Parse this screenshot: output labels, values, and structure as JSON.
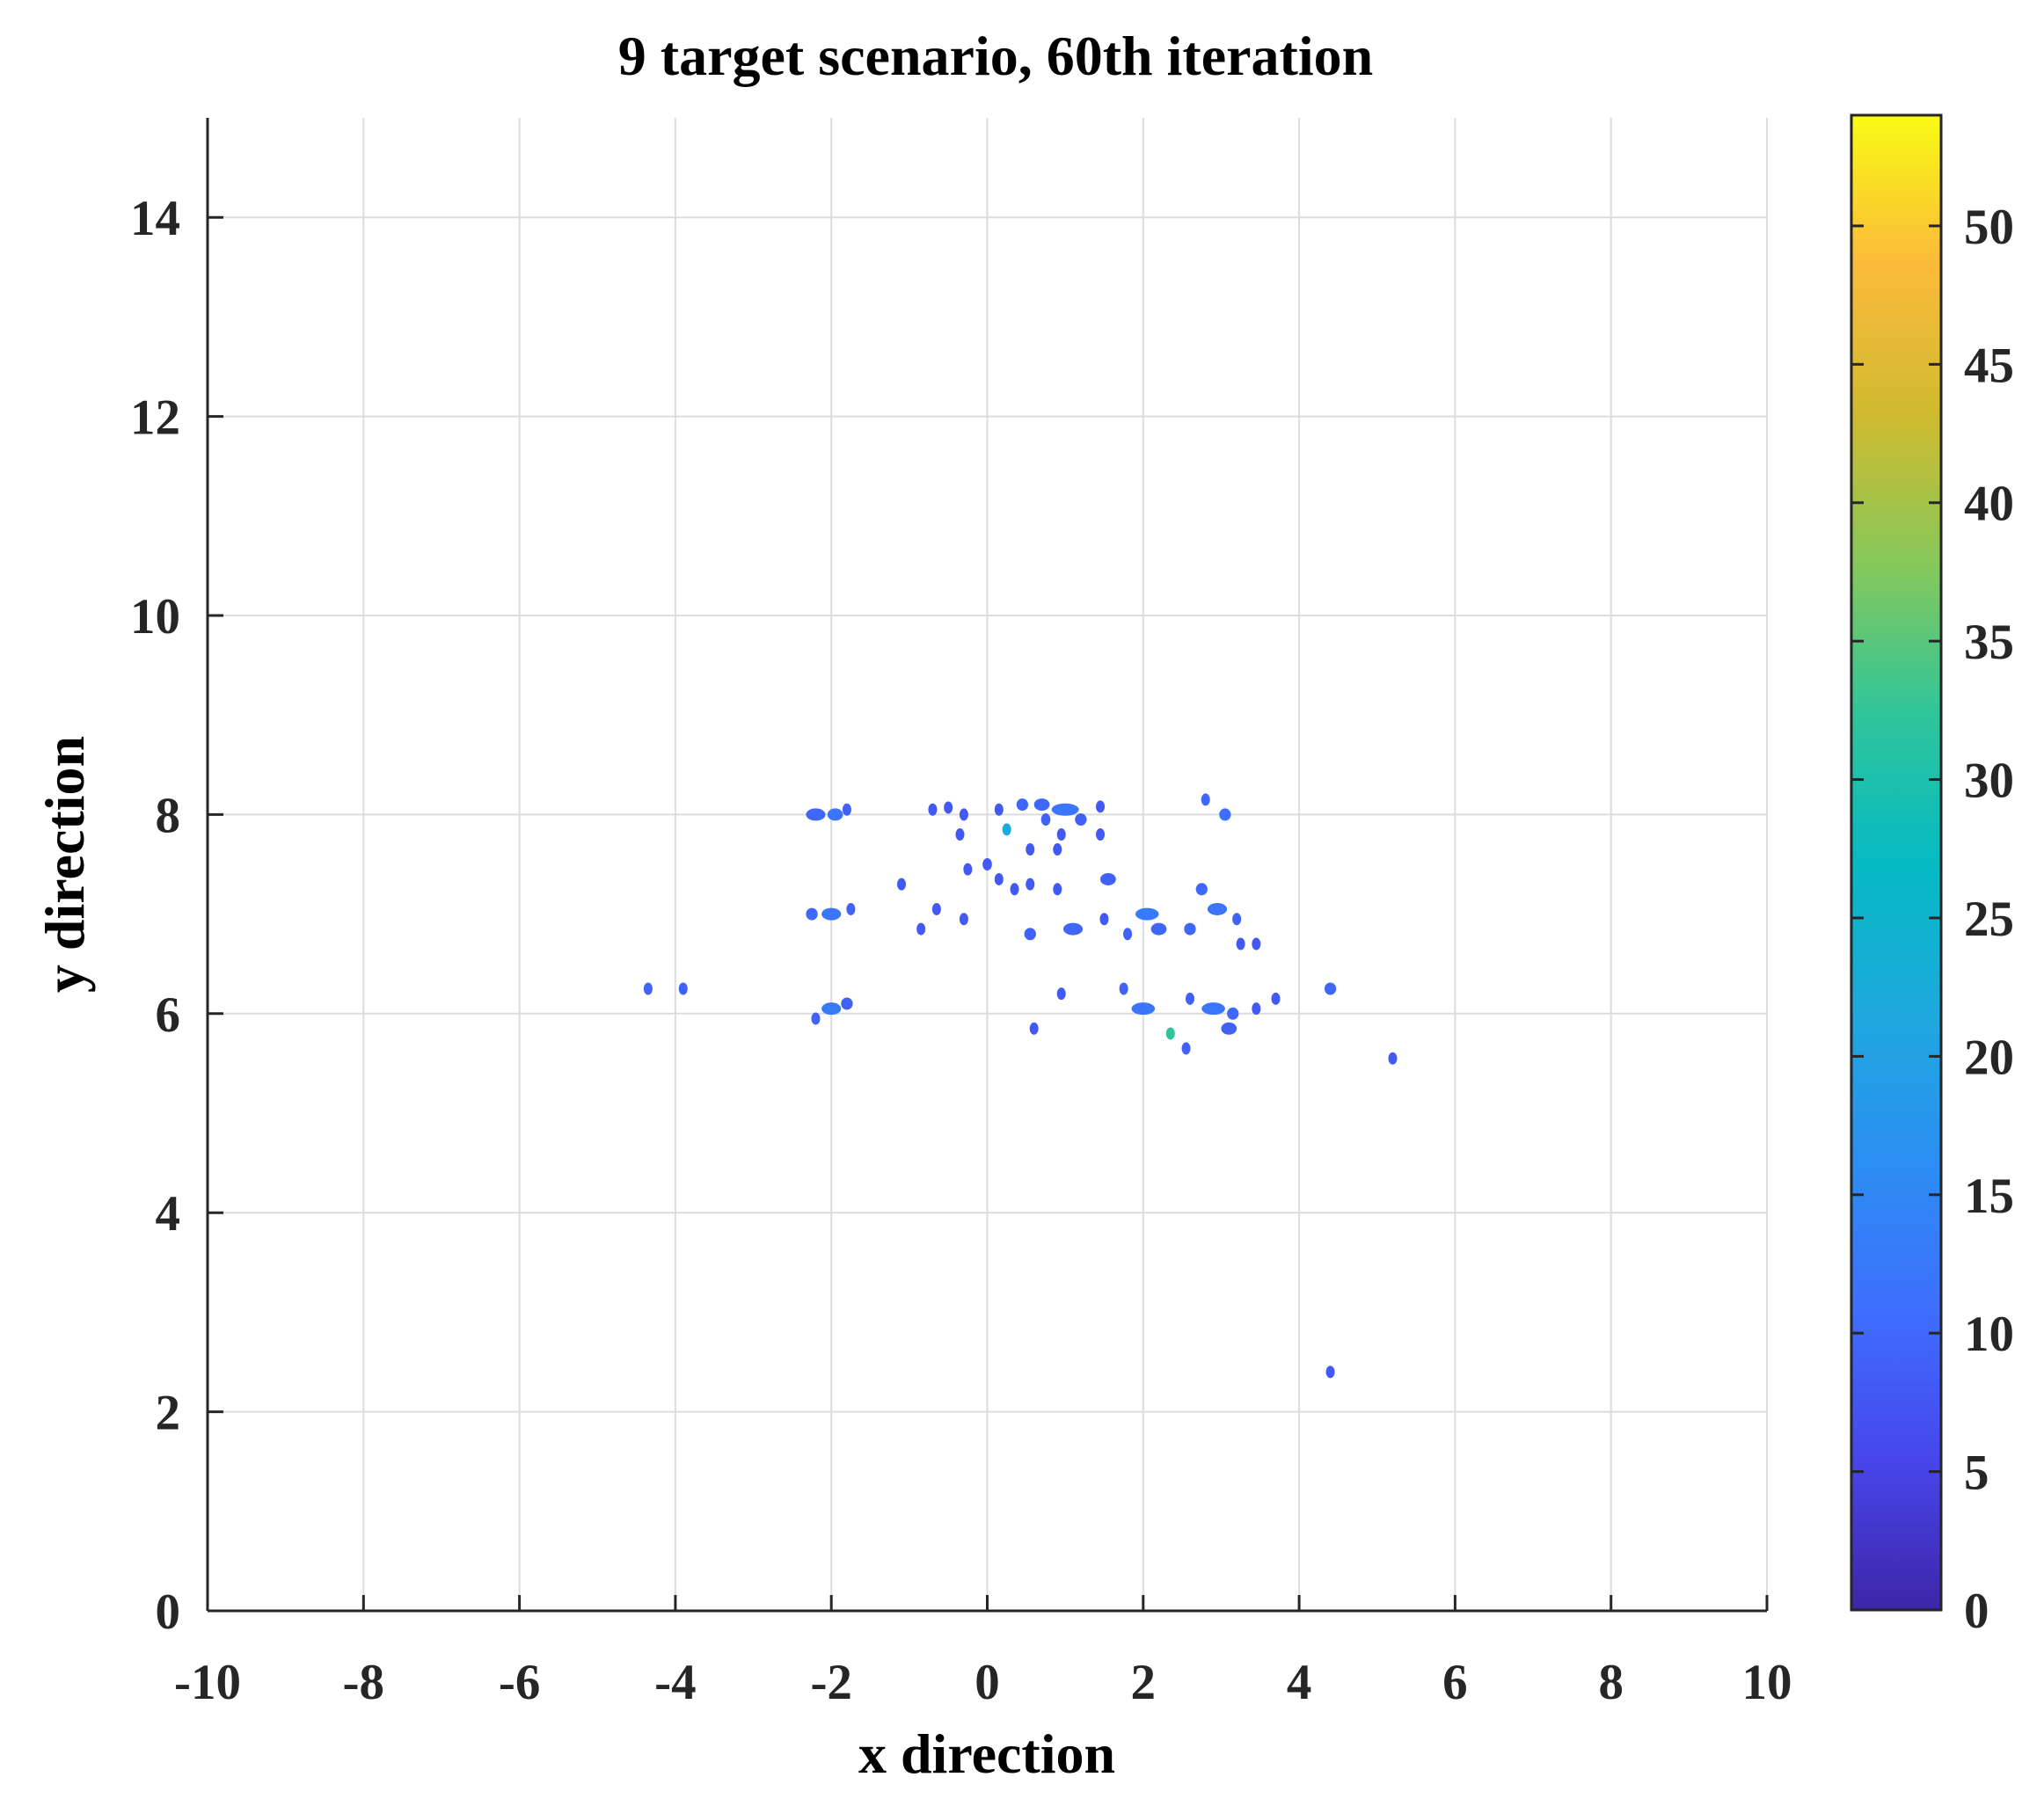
{
  "chart_data": {
    "type": "heatmap",
    "title": "9 target scenario, 60th iteration",
    "xlabel": "x direction",
    "ylabel": "y direction",
    "xlim": [
      -10,
      10
    ],
    "ylim": [
      0,
      15
    ],
    "xticks": [
      -10,
      -8,
      -6,
      -4,
      -2,
      0,
      2,
      4,
      6,
      8,
      10
    ],
    "yticks": [
      0,
      2,
      4,
      6,
      8,
      10,
      12,
      14
    ],
    "grid": true,
    "colorbar": {
      "colormap": "parula",
      "range": [
        0,
        54
      ],
      "ticks": [
        0,
        5,
        10,
        15,
        20,
        25,
        30,
        35,
        40,
        45,
        50
      ]
    },
    "points": [
      {
        "x": -2.2,
        "y": 8.0,
        "v": 10,
        "w": 0.25
      },
      {
        "x": -1.95,
        "y": 8.0,
        "v": 12,
        "w": 0.2
      },
      {
        "x": -1.8,
        "y": 8.05,
        "v": 9,
        "w": 0.1
      },
      {
        "x": -2.25,
        "y": 7.0,
        "v": 10,
        "w": 0.15
      },
      {
        "x": -2.0,
        "y": 7.0,
        "v": 12,
        "w": 0.25
      },
      {
        "x": -1.75,
        "y": 7.05,
        "v": 9,
        "w": 0.1
      },
      {
        "x": -2.2,
        "y": 5.95,
        "v": 9,
        "w": 0.1
      },
      {
        "x": -2.0,
        "y": 6.05,
        "v": 13,
        "w": 0.25
      },
      {
        "x": -1.8,
        "y": 6.1,
        "v": 9,
        "w": 0.15
      },
      {
        "x": -4.35,
        "y": 6.25,
        "v": 9,
        "w": 0.06
      },
      {
        "x": -3.9,
        "y": 6.25,
        "v": 9,
        "w": 0.06
      },
      {
        "x": -0.7,
        "y": 8.05,
        "v": 8,
        "w": 0.06
      },
      {
        "x": -0.5,
        "y": 8.07,
        "v": 8,
        "w": 0.1
      },
      {
        "x": -0.3,
        "y": 8.0,
        "v": 8,
        "w": 0.06
      },
      {
        "x": 0.15,
        "y": 8.05,
        "v": 8,
        "w": 0.06
      },
      {
        "x": 0.25,
        "y": 7.85,
        "v": 22,
        "w": 0.05
      },
      {
        "x": 0.45,
        "y": 8.1,
        "v": 10,
        "w": 0.15
      },
      {
        "x": 0.7,
        "y": 8.1,
        "v": 10,
        "w": 0.2
      },
      {
        "x": 1.0,
        "y": 8.05,
        "v": 12,
        "w": 0.35
      },
      {
        "x": 1.2,
        "y": 7.95,
        "v": 9,
        "w": 0.15
      },
      {
        "x": 0.75,
        "y": 7.95,
        "v": 9,
        "w": 0.12
      },
      {
        "x": 0.95,
        "y": 7.8,
        "v": 8,
        "w": 0.05
      },
      {
        "x": 1.45,
        "y": 8.08,
        "v": 8,
        "w": 0.06
      },
      {
        "x": 1.45,
        "y": 7.8,
        "v": 8,
        "w": 0.06
      },
      {
        "x": -0.35,
        "y": 7.8,
        "v": 8,
        "w": 0.05
      },
      {
        "x": -0.25,
        "y": 7.45,
        "v": 8,
        "w": 0.05
      },
      {
        "x": 0.0,
        "y": 7.5,
        "v": 8,
        "w": 0.12
      },
      {
        "x": 0.15,
        "y": 7.35,
        "v": 8,
        "w": 0.06
      },
      {
        "x": 0.35,
        "y": 7.25,
        "v": 8,
        "w": 0.06
      },
      {
        "x": 0.55,
        "y": 7.3,
        "v": 8,
        "w": 0.05
      },
      {
        "x": 0.55,
        "y": 7.65,
        "v": 8,
        "w": 0.05
      },
      {
        "x": 0.9,
        "y": 7.65,
        "v": 8,
        "w": 0.05
      },
      {
        "x": 0.9,
        "y": 7.25,
        "v": 8,
        "w": 0.05
      },
      {
        "x": -1.1,
        "y": 7.3,
        "v": 8,
        "w": 0.05
      },
      {
        "x": -0.65,
        "y": 7.05,
        "v": 8,
        "w": 0.1
      },
      {
        "x": -0.3,
        "y": 6.95,
        "v": 8,
        "w": 0.05
      },
      {
        "x": -0.85,
        "y": 6.85,
        "v": 8,
        "w": 0.1
      },
      {
        "x": 0.55,
        "y": 6.8,
        "v": 9,
        "w": 0.15
      },
      {
        "x": 1.1,
        "y": 6.85,
        "v": 10,
        "w": 0.25
      },
      {
        "x": 1.55,
        "y": 7.35,
        "v": 9,
        "w": 0.2
      },
      {
        "x": 1.5,
        "y": 6.95,
        "v": 8,
        "w": 0.05
      },
      {
        "x": 2.05,
        "y": 7.0,
        "v": 13,
        "w": 0.3
      },
      {
        "x": 2.2,
        "y": 6.85,
        "v": 10,
        "w": 0.2
      },
      {
        "x": 1.8,
        "y": 6.8,
        "v": 9,
        "w": 0.1
      },
      {
        "x": 2.6,
        "y": 6.85,
        "v": 10,
        "w": 0.15
      },
      {
        "x": 2.75,
        "y": 7.25,
        "v": 10,
        "w": 0.15
      },
      {
        "x": 2.95,
        "y": 7.05,
        "v": 12,
        "w": 0.25
      },
      {
        "x": 3.2,
        "y": 6.95,
        "v": 9,
        "w": 0.1
      },
      {
        "x": 2.8,
        "y": 8.15,
        "v": 10,
        "w": 0.1
      },
      {
        "x": 3.05,
        "y": 8.0,
        "v": 11,
        "w": 0.15
      },
      {
        "x": 3.25,
        "y": 6.7,
        "v": 8,
        "w": 0.05
      },
      {
        "x": 3.45,
        "y": 6.7,
        "v": 8,
        "w": 0.05
      },
      {
        "x": 0.95,
        "y": 6.2,
        "v": 8,
        "w": 0.05
      },
      {
        "x": 0.6,
        "y": 5.85,
        "v": 8,
        "w": 0.05
      },
      {
        "x": 1.75,
        "y": 6.25,
        "v": 9,
        "w": 0.05
      },
      {
        "x": 2.0,
        "y": 6.05,
        "v": 12,
        "w": 0.3
      },
      {
        "x": 2.35,
        "y": 5.8,
        "v": 32,
        "w": 0.06
      },
      {
        "x": 2.55,
        "y": 5.65,
        "v": 9,
        "w": 0.05
      },
      {
        "x": 2.6,
        "y": 6.15,
        "v": 9,
        "w": 0.05
      },
      {
        "x": 2.9,
        "y": 6.05,
        "v": 12,
        "w": 0.3
      },
      {
        "x": 3.1,
        "y": 5.85,
        "v": 9,
        "w": 0.2
      },
      {
        "x": 3.15,
        "y": 6.0,
        "v": 10,
        "w": 0.15
      },
      {
        "x": 3.45,
        "y": 6.05,
        "v": 8,
        "w": 0.1
      },
      {
        "x": 3.7,
        "y": 6.15,
        "v": 8,
        "w": 0.05
      },
      {
        "x": 4.4,
        "y": 6.25,
        "v": 10,
        "w": 0.15
      },
      {
        "x": 5.2,
        "y": 5.55,
        "v": 8,
        "w": 0.05
      },
      {
        "x": 4.4,
        "y": 2.4,
        "v": 8,
        "w": 0.05
      }
    ]
  }
}
